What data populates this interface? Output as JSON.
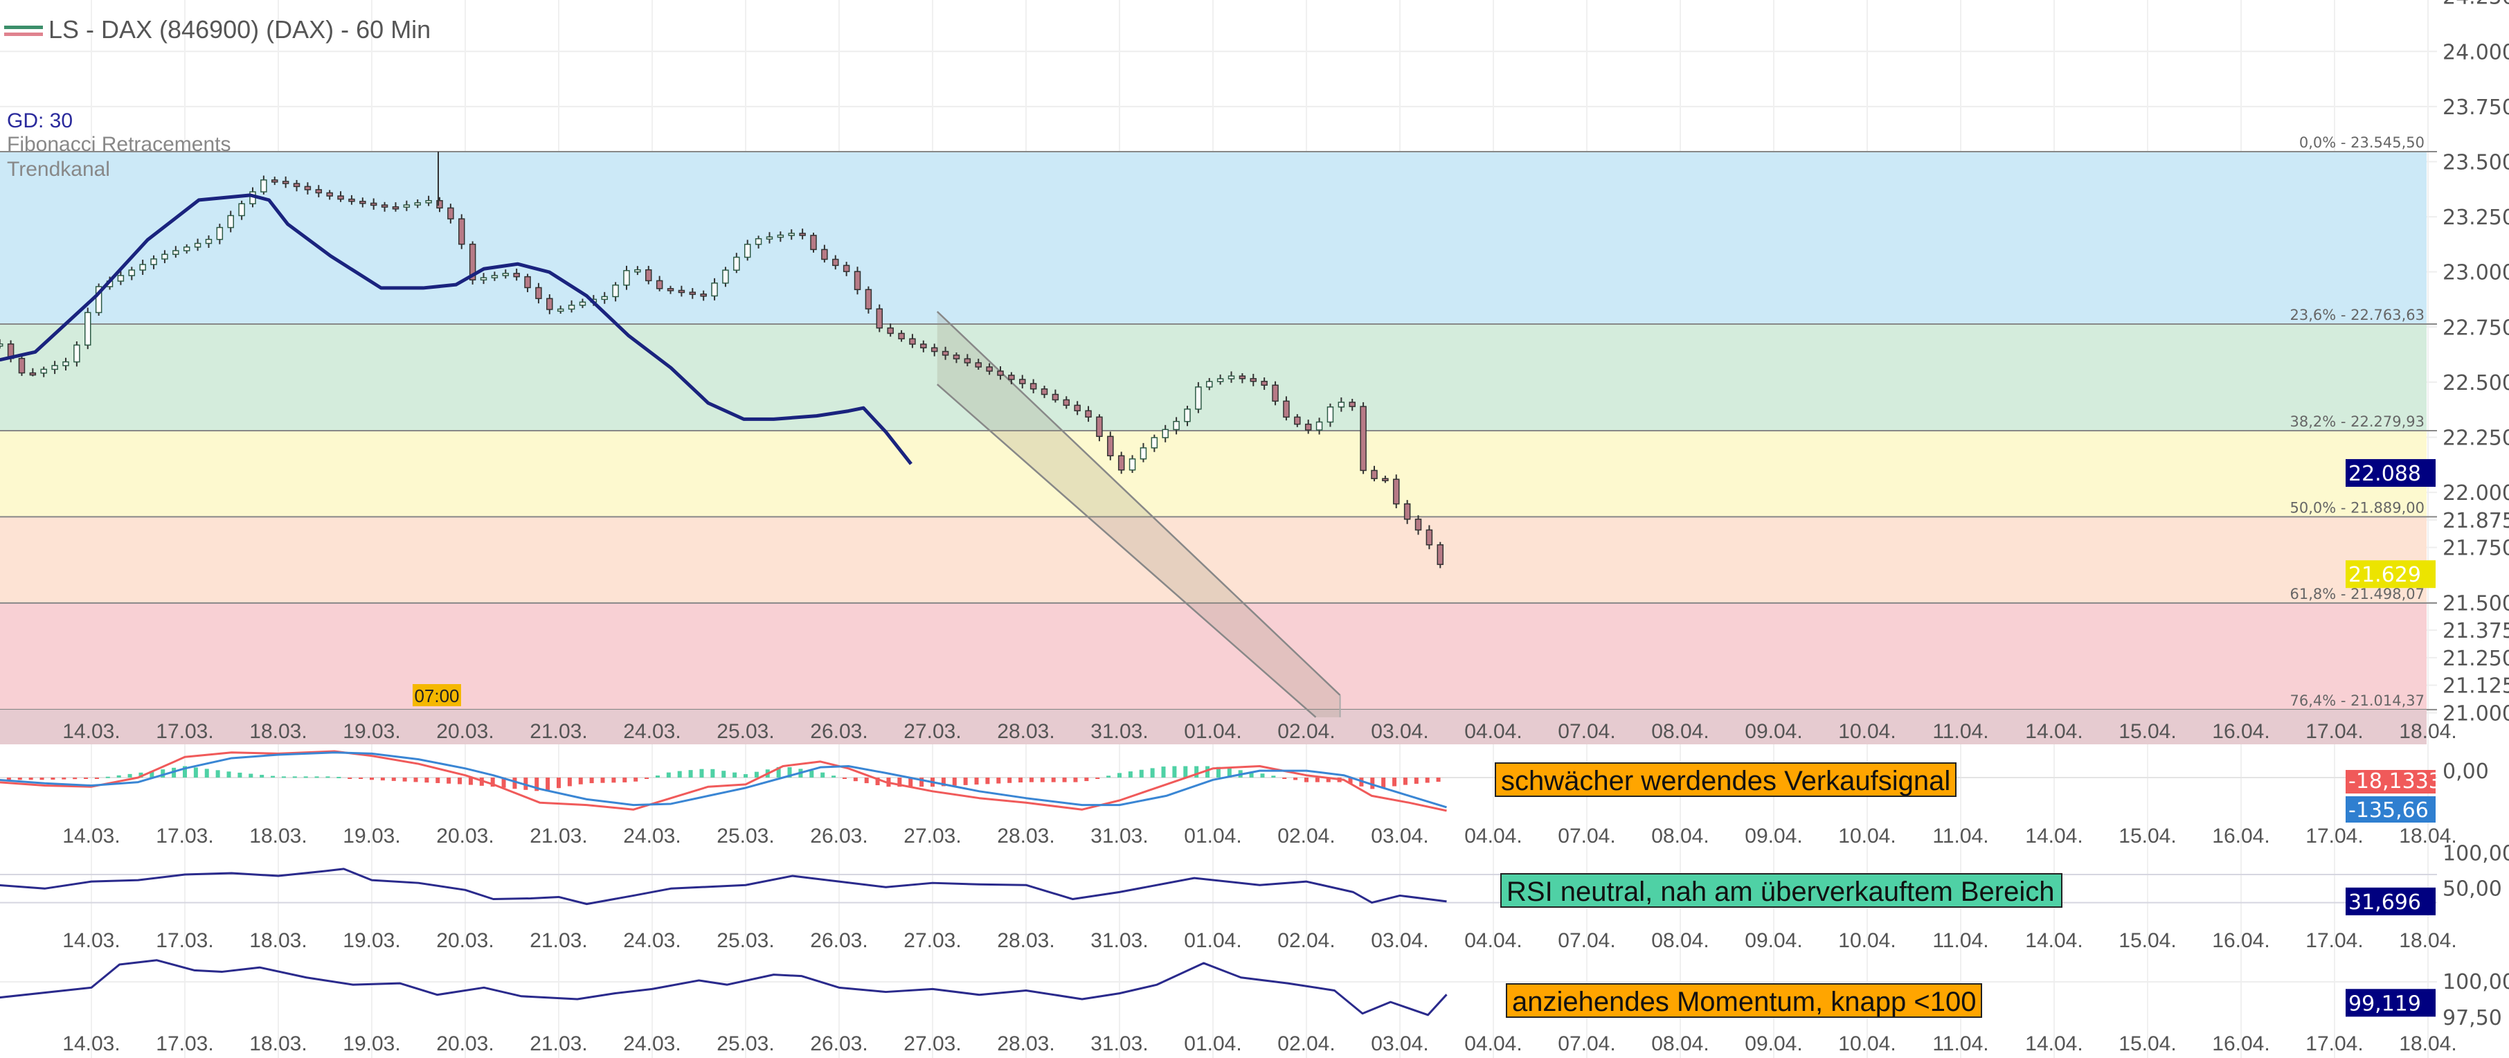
{
  "header": {
    "title": "LS - DAX (846900) (DAX) - 60 Min",
    "legend_ma": "GD: 30",
    "legend_fib": "Fibonacci Retracements",
    "legend_channel": "Trendkanal",
    "crosshair_time": "07:00"
  },
  "colors": {
    "ma": "#1a237e",
    "fib0": "#cce9f7",
    "fib1": "#d4ecdc",
    "fib2": "#fdf9cf",
    "fib3": "#fde3d4",
    "fib4": "#f8d0d4",
    "macd": "#f05a5a",
    "signal": "#3a86d4",
    "hist_pos": "#4fd1a5",
    "hist_neg": "#f05a5a",
    "osc": "#2a2a8c"
  },
  "chart_data": [
    {
      "type": "candlestick",
      "title": "LS - DAX (846900) (DAX) - 60 Min",
      "x_unit": "trading day index (0 = 14.03.)",
      "dates": [
        "14.03.",
        "17.03.",
        "18.03.",
        "19.03.",
        "20.03.",
        "21.03.",
        "24.03.",
        "25.03.",
        "26.03.",
        "27.03.",
        "28.03.",
        "31.03.",
        "01.04.",
        "02.04.",
        "03.04.",
        "04.04.",
        "07.04.",
        "08.04.",
        "09.04.",
        "10.04.",
        "11.04.",
        "14.04.",
        "15.04.",
        "16.04.",
        "17.04.",
        "18.04."
      ],
      "y_ticks": [
        "24.250",
        "24.000",
        "23.750",
        "23.500",
        "23.250",
        "23.000",
        "22.750",
        "22.500",
        "22.250",
        "22.000",
        "21.875",
        "21.750",
        "21.500",
        "21.375",
        "21.250",
        "21.125",
        "21.000"
      ],
      "y_tick_values": [
        24250,
        24000,
        23750,
        23500,
        23250,
        23000,
        22750,
        22500,
        22250,
        22000,
        21875,
        21750,
        21500,
        21375,
        21250,
        21125,
        21000
      ],
      "ylim": [
        21000,
        24250
      ],
      "close_path": [
        [
          -0.98,
          22673
        ],
        [
          -0.72,
          22528
        ],
        [
          -0.21,
          22601
        ],
        [
          0.05,
          22927
        ],
        [
          0.73,
          23072
        ],
        [
          1.25,
          23145
        ],
        [
          1.85,
          23420
        ],
        [
          2.1,
          23399
        ],
        [
          2.7,
          23326
        ],
        [
          3.21,
          23290
        ],
        [
          3.64,
          23326
        ],
        [
          3.9,
          23217
        ],
        [
          4.07,
          22963
        ],
        [
          4.5,
          22999
        ],
        [
          4.93,
          22818
        ],
        [
          5.18,
          22855
        ],
        [
          5.52,
          22891
        ],
        [
          5.78,
          23036
        ],
        [
          6.04,
          22927
        ],
        [
          6.55,
          22891
        ],
        [
          7.06,
          23145
        ],
        [
          7.58,
          23181
        ],
        [
          7.78,
          23072
        ],
        [
          8.09,
          22999
        ],
        [
          8.43,
          22746
        ],
        [
          8.78,
          22673
        ],
        [
          9.29,
          22601
        ],
        [
          9.97,
          22492
        ],
        [
          10.66,
          22347
        ],
        [
          11.0,
          22093
        ],
        [
          11.34,
          22238
        ],
        [
          11.69,
          22347
        ],
        [
          11.86,
          22492
        ],
        [
          12.2,
          22528
        ],
        [
          12.54,
          22492
        ],
        [
          12.8,
          22332
        ],
        [
          13.06,
          22274
        ],
        [
          13.31,
          22419
        ],
        [
          13.53,
          22383
        ],
        [
          13.65,
          21948
        ],
        [
          13.77,
          22129
        ],
        [
          14.0,
          21911
        ],
        [
          14.26,
          21803
        ],
        [
          14.49,
          21629
        ]
      ],
      "moving_average": {
        "label": "GD: 30",
        "values": [
          [
            -0.98,
            22601
          ],
          [
            -0.6,
            22637
          ],
          [
            0.05,
            22891
          ],
          [
            0.6,
            23145
          ],
          [
            1.15,
            23326
          ],
          [
            1.7,
            23348
          ],
          [
            1.9,
            23326
          ],
          [
            2.1,
            23217
          ],
          [
            2.56,
            23072
          ],
          [
            3.1,
            22927
          ],
          [
            3.55,
            22927
          ],
          [
            3.9,
            22942
          ],
          [
            4.2,
            23014
          ],
          [
            4.56,
            23036
          ],
          [
            4.9,
            22999
          ],
          [
            5.3,
            22891
          ],
          [
            5.75,
            22710
          ],
          [
            6.2,
            22565
          ],
          [
            6.6,
            22405
          ],
          [
            6.98,
            22332
          ],
          [
            7.3,
            22332
          ],
          [
            7.76,
            22347
          ],
          [
            8.1,
            22369
          ],
          [
            8.26,
            22383
          ],
          [
            8.5,
            22274
          ],
          [
            8.77,
            22129
          ]
        ]
      },
      "last_price": "21.629",
      "ma_last": "22.088",
      "fibonacci": [
        {
          "label": "0,0% - 23.545,50",
          "value": 23545.5
        },
        {
          "label": "23,6% - 22.763,63",
          "value": 22763.63
        },
        {
          "label": "38,2% - 22.279,93",
          "value": 22279.93
        },
        {
          "label": "50,0% - 21.889,00",
          "value": 21889.0
        },
        {
          "label": "61,8% - 21.498,07",
          "value": 21498.07
        },
        {
          "label": "76,4% - 21.014,37",
          "value": 21014.37
        }
      ],
      "trend_channel": {
        "upper": [
          [
            9.05,
            22820
          ],
          [
            13.36,
            21080
          ]
        ],
        "lower": [
          [
            9.05,
            22490
          ],
          [
            13.1,
            20980
          ]
        ]
      }
    },
    {
      "type": "line",
      "title": "MACD",
      "ylim": [
        -150,
        140
      ],
      "y_ticks": [
        "0,00"
      ],
      "macd": [
        [
          -1,
          -20
        ],
        [
          -0.5,
          -35
        ],
        [
          0,
          -40
        ],
        [
          0.5,
          0
        ],
        [
          1,
          90
        ],
        [
          1.5,
          110
        ],
        [
          2,
          105
        ],
        [
          2.6,
          115
        ],
        [
          3,
          95
        ],
        [
          3.5,
          60
        ],
        [
          4,
          10
        ],
        [
          4.3,
          -30
        ],
        [
          4.8,
          -110
        ],
        [
          5.3,
          -120
        ],
        [
          5.8,
          -140
        ],
        [
          6.2,
          -90
        ],
        [
          6.6,
          -40
        ],
        [
          7,
          -30
        ],
        [
          7.4,
          50
        ],
        [
          7.8,
          70
        ],
        [
          8.1,
          40
        ],
        [
          8.5,
          -20
        ],
        [
          9,
          -60
        ],
        [
          9.5,
          -90
        ],
        [
          10,
          -110
        ],
        [
          10.6,
          -140
        ],
        [
          11,
          -100
        ],
        [
          11.5,
          -30
        ],
        [
          12,
          40
        ],
        [
          12.5,
          50
        ],
        [
          13,
          10
        ],
        [
          13.4,
          -10
        ],
        [
          13.7,
          -80
        ],
        [
          14.1,
          -110
        ],
        [
          14.5,
          -145
        ]
      ],
      "signal": [
        [
          -1,
          -10
        ],
        [
          -0.5,
          -25
        ],
        [
          0,
          -35
        ],
        [
          0.5,
          -20
        ],
        [
          1,
          40
        ],
        [
          1.5,
          85
        ],
        [
          2,
          100
        ],
        [
          2.6,
          110
        ],
        [
          3,
          105
        ],
        [
          3.5,
          80
        ],
        [
          4,
          40
        ],
        [
          4.3,
          10
        ],
        [
          4.8,
          -50
        ],
        [
          5.3,
          -95
        ],
        [
          5.8,
          -120
        ],
        [
          6.2,
          -115
        ],
        [
          6.6,
          -80
        ],
        [
          7,
          -45
        ],
        [
          7.4,
          0
        ],
        [
          7.8,
          45
        ],
        [
          8.1,
          50
        ],
        [
          8.5,
          20
        ],
        [
          9,
          -20
        ],
        [
          9.5,
          -60
        ],
        [
          10,
          -90
        ],
        [
          10.6,
          -120
        ],
        [
          11,
          -120
        ],
        [
          11.5,
          -80
        ],
        [
          12,
          -10
        ],
        [
          12.5,
          30
        ],
        [
          13,
          30
        ],
        [
          13.4,
          10
        ],
        [
          13.7,
          -30
        ],
        [
          14.1,
          -80
        ],
        [
          14.5,
          -130
        ]
      ],
      "value_labels": [
        "-18,1333",
        "-135,66"
      ],
      "annotation": "schwächer werdendes Verkaufsignal"
    },
    {
      "type": "line",
      "title": "RSI",
      "ylim": [
        0,
        100
      ],
      "y_ticks": [
        "100,00",
        "50,00"
      ],
      "levels": [
        70,
        30
      ],
      "values": [
        [
          -1,
          55
        ],
        [
          -0.5,
          50
        ],
        [
          0,
          60
        ],
        [
          0.5,
          62
        ],
        [
          1,
          70
        ],
        [
          1.5,
          72
        ],
        [
          2,
          68
        ],
        [
          2.5,
          75
        ],
        [
          2.7,
          78
        ],
        [
          3,
          62
        ],
        [
          3.5,
          58
        ],
        [
          4,
          48
        ],
        [
          4.3,
          35
        ],
        [
          4.7,
          36
        ],
        [
          5,
          38
        ],
        [
          5.3,
          28
        ],
        [
          5.8,
          40
        ],
        [
          6.2,
          50
        ],
        [
          7,
          55
        ],
        [
          7.5,
          68
        ],
        [
          8,
          60
        ],
        [
          8.5,
          52
        ],
        [
          9,
          58
        ],
        [
          9.5,
          56
        ],
        [
          10,
          55
        ],
        [
          10.5,
          35
        ],
        [
          11,
          45
        ],
        [
          11.8,
          65
        ],
        [
          12.5,
          55
        ],
        [
          13,
          60
        ],
        [
          13.5,
          45
        ],
        [
          13.7,
          30
        ],
        [
          14,
          40
        ],
        [
          14.3,
          35
        ],
        [
          14.5,
          31.7
        ]
      ],
      "value_label": "31,696",
      "annotation": "RSI neutral, nah am überverkauftem Bereich"
    },
    {
      "type": "line",
      "title": "Momentum",
      "ylim": [
        97,
        102.1
      ],
      "y_ticks": [
        "100,00",
        "97,50"
      ],
      "values": [
        [
          -1,
          98.9
        ],
        [
          0,
          99.6
        ],
        [
          0.3,
          101.2
        ],
        [
          0.7,
          101.5
        ],
        [
          1.1,
          100.8
        ],
        [
          1.4,
          100.7
        ],
        [
          1.8,
          101.0
        ],
        [
          2.3,
          100.3
        ],
        [
          2.8,
          99.8
        ],
        [
          3.3,
          99.9
        ],
        [
          3.7,
          99.1
        ],
        [
          4.2,
          99.6
        ],
        [
          4.6,
          99.0
        ],
        [
          5.2,
          98.8
        ],
        [
          5.6,
          99.2
        ],
        [
          6,
          99.5
        ],
        [
          6.5,
          100.1
        ],
        [
          6.8,
          99.8
        ],
        [
          7.3,
          100.5
        ],
        [
          7.6,
          100.4
        ],
        [
          8,
          99.6
        ],
        [
          8.5,
          99.3
        ],
        [
          9,
          99.5
        ],
        [
          9.5,
          99.1
        ],
        [
          10,
          99.4
        ],
        [
          10.6,
          98.8
        ],
        [
          11,
          99.2
        ],
        [
          11.4,
          99.8
        ],
        [
          11.9,
          101.3
        ],
        [
          12.3,
          100.3
        ],
        [
          12.8,
          99.9
        ],
        [
          13.3,
          99.4
        ],
        [
          13.6,
          97.8
        ],
        [
          13.9,
          98.6
        ],
        [
          14.3,
          97.7
        ],
        [
          14.5,
          99.12
        ]
      ],
      "value_label": "99,119",
      "annotation": "anziehendes Momentum, knapp <100"
    }
  ]
}
